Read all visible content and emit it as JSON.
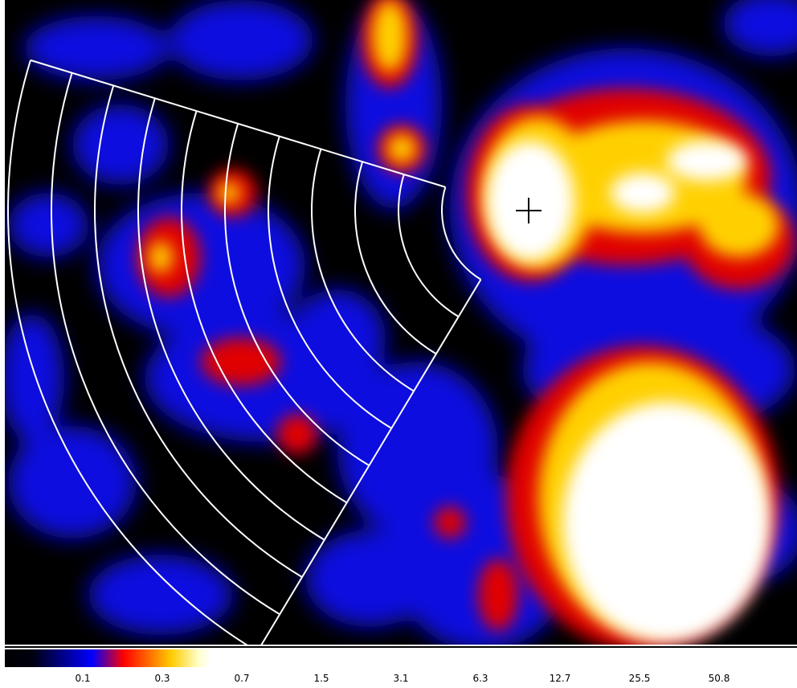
{
  "colorbar": {
    "labels": [
      "0.1",
      "0.3",
      "0.7",
      "1.5",
      "3.1",
      "6.3",
      "12.7",
      "25.5",
      "50.8"
    ]
  }
}
